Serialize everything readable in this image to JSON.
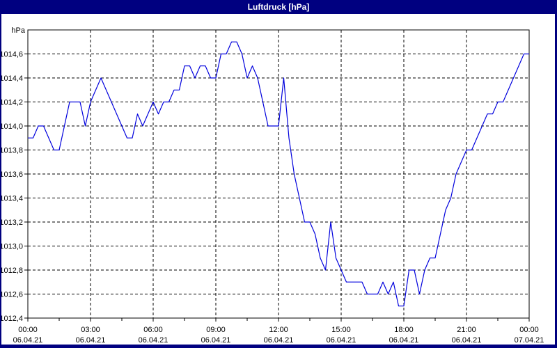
{
  "window": {
    "title": "Luftdruck [hPa]",
    "titlebar_color": "#000080",
    "border_color": "#000080",
    "client_background": "#ffffff"
  },
  "chart_data": {
    "type": "line",
    "title": "Luftdruck [hPa]",
    "y_unit_label": "hPa",
    "line_color": "#0000dd",
    "grid_color": "#000000",
    "grid_style": "dashed",
    "legend": "none",
    "ylim": [
      1012.4,
      1014.8
    ],
    "y_ticks": [
      1012.4,
      1012.6,
      1012.8,
      1013.0,
      1013.2,
      1013.4,
      1013.6,
      1013.8,
      1014.0,
      1014.2,
      1014.4,
      1014.6
    ],
    "y_tick_labels": [
      "1012,4",
      "1012,6",
      "1012,8",
      "1013,0",
      "1013,2",
      "1013,4",
      "1013,6",
      "1013,8",
      "1014,0",
      "1014,2",
      "1014,4",
      "1014,6"
    ],
    "x_range_hours": [
      0,
      24
    ],
    "x_minor_tick_interval_hours": 1.5,
    "x_major_ticks": [
      {
        "hour": 0,
        "time": "00:00",
        "date": "06.04.21"
      },
      {
        "hour": 3,
        "time": "03:00",
        "date": "06.04.21"
      },
      {
        "hour": 6,
        "time": "06:00",
        "date": "06.04.21"
      },
      {
        "hour": 9,
        "time": "09:00",
        "date": "06.04.21"
      },
      {
        "hour": 12,
        "time": "12:00",
        "date": "06.04.21"
      },
      {
        "hour": 15,
        "time": "15:00",
        "date": "06.04.21"
      },
      {
        "hour": 18,
        "time": "18:00",
        "date": "06.04.21"
      },
      {
        "hour": 21,
        "time": "21:00",
        "date": "06.04.21"
      },
      {
        "hour": 24,
        "time": "00:00",
        "date": "07.04.21"
      }
    ],
    "series": [
      {
        "name": "Luftdruck",
        "x_start_hour": 0,
        "x_step_hours": 0.25,
        "values": [
          1013.9,
          1013.9,
          1014.0,
          1014.0,
          1013.9,
          1013.8,
          1013.8,
          1014.0,
          1014.2,
          1014.2,
          1014.2,
          1014.0,
          1014.2,
          1014.3,
          1014.4,
          1014.3,
          1014.2,
          1014.1,
          1014.0,
          1013.9,
          1013.9,
          1014.1,
          1014.0,
          1014.1,
          1014.2,
          1014.1,
          1014.2,
          1014.2,
          1014.3,
          1014.3,
          1014.5,
          1014.5,
          1014.4,
          1014.5,
          1014.5,
          1014.4,
          1014.4,
          1014.6,
          1014.6,
          1014.7,
          1014.7,
          1014.6,
          1014.4,
          1014.5,
          1014.4,
          1014.2,
          1014.0,
          1014.0,
          1014.0,
          1014.4,
          1013.9,
          1013.6,
          1013.4,
          1013.2,
          1013.2,
          1013.1,
          1012.9,
          1012.8,
          1013.2,
          1012.9,
          1012.8,
          1012.7,
          1012.7,
          1012.7,
          1012.7,
          1012.6,
          1012.6,
          1012.6,
          1012.7,
          1012.6,
          1012.7,
          1012.5,
          1012.5,
          1012.8,
          1012.8,
          1012.6,
          1012.8,
          1012.9,
          1012.9,
          1013.1,
          1013.3,
          1013.4,
          1013.6,
          1013.7,
          1013.8,
          1013.8,
          1013.9,
          1014.0,
          1014.1,
          1014.1,
          1014.2,
          1014.2,
          1014.3,
          1014.4,
          1014.5,
          1014.6,
          1014.6
        ]
      }
    ]
  }
}
